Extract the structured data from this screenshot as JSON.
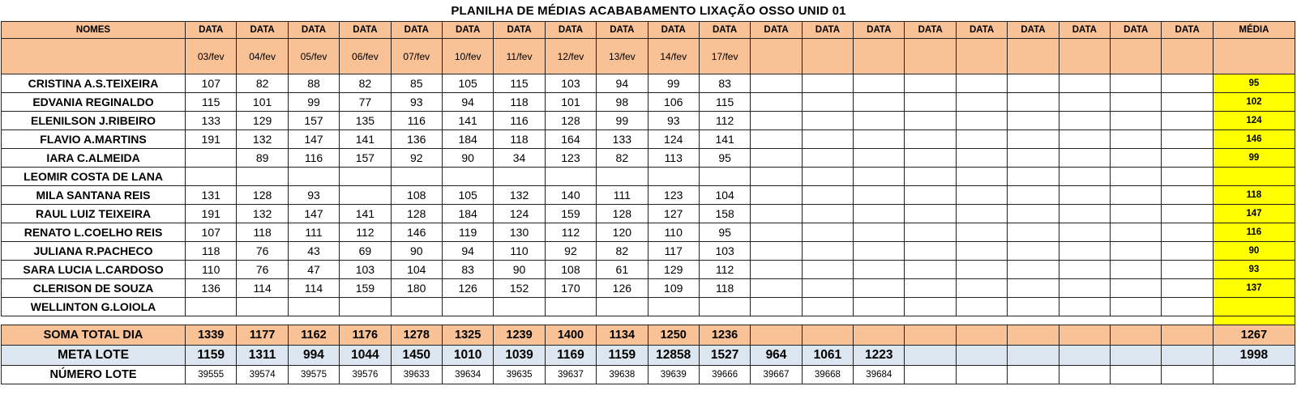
{
  "title": "PLANILHA DE MÉDIAS ACABABAMENTO LIXAÇÃO OSSO UNID 01",
  "headers": {
    "names": "NOMES",
    "date_cols": [
      "DATA",
      "DATA",
      "DATA",
      "DATA",
      "DATA",
      "DATA",
      "DATA",
      "DATA",
      "DATA",
      "DATA",
      "DATA",
      "DATA",
      "DATA",
      "DATA",
      "DATA",
      "DATA",
      "DATA",
      "DATA",
      "DATA",
      "DATA"
    ],
    "media": "MÉDIA"
  },
  "dates": [
    "03/fev",
    "04/fev",
    "05/fev",
    "06/fev",
    "07/fev",
    "10/fev",
    "11/fev",
    "12/fev",
    "13/fev",
    "14/fev",
    "17/fev",
    "",
    "",
    "",
    "",
    "",
    "",
    "",
    "",
    ""
  ],
  "rows": [
    {
      "name": "CRISTINA A.S.TEIXEIRA",
      "values": [
        "107",
        "82",
        "88",
        "82",
        "85",
        "105",
        "115",
        "103",
        "94",
        "99",
        "83",
        "",
        "",
        "",
        "",
        "",
        "",
        "",
        "",
        ""
      ],
      "media": "95"
    },
    {
      "name": "EDVANIA REGINALDO",
      "values": [
        "115",
        "101",
        "99",
        "77",
        "93",
        "94",
        "118",
        "101",
        "98",
        "106",
        "115",
        "",
        "",
        "",
        "",
        "",
        "",
        "",
        "",
        ""
      ],
      "media": "102"
    },
    {
      "name": "ELENILSON J.RIBEIRO",
      "values": [
        "133",
        "129",
        "157",
        "135",
        "116",
        "141",
        "116",
        "128",
        "99",
        "93",
        "112",
        "",
        "",
        "",
        "",
        "",
        "",
        "",
        "",
        ""
      ],
      "media": "124"
    },
    {
      "name": "FLAVIO A.MARTINS",
      "values": [
        "191",
        "132",
        "147",
        "141",
        "136",
        "184",
        "118",
        "164",
        "133",
        "124",
        "141",
        "",
        "",
        "",
        "",
        "",
        "",
        "",
        "",
        ""
      ],
      "media": "146"
    },
    {
      "name": "IARA C.ALMEIDA",
      "values": [
        "",
        "89",
        "116",
        "157",
        "92",
        "90",
        "34",
        "123",
        "82",
        "113",
        "95",
        "",
        "",
        "",
        "",
        "",
        "",
        "",
        "",
        ""
      ],
      "media": "99"
    },
    {
      "name": "LEOMIR COSTA DE LANA",
      "values": [
        "",
        "",
        "",
        "",
        "",
        "",
        "",
        "",
        "",
        "",
        "",
        "",
        "",
        "",
        "",
        "",
        "",
        "",
        "",
        ""
      ],
      "media": ""
    },
    {
      "name": "MILA SANTANA REIS",
      "values": [
        "131",
        "128",
        "93",
        "",
        "108",
        "105",
        "132",
        "140",
        "111",
        "123",
        "104",
        "",
        "",
        "",
        "",
        "",
        "",
        "",
        "",
        ""
      ],
      "media": "118"
    },
    {
      "name": "RAUL LUIZ TEIXEIRA",
      "values": [
        "191",
        "132",
        "147",
        "141",
        "128",
        "184",
        "124",
        "159",
        "128",
        "127",
        "158",
        "",
        "",
        "",
        "",
        "",
        "",
        "",
        "",
        ""
      ],
      "media": "147"
    },
    {
      "name": "RENATO L.COELHO REIS",
      "values": [
        "107",
        "118",
        "111",
        "112",
        "146",
        "119",
        "130",
        "112",
        "120",
        "110",
        "95",
        "",
        "",
        "",
        "",
        "",
        "",
        "",
        "",
        ""
      ],
      "media": "116"
    },
    {
      "name": "JULIANA R.PACHECO",
      "values": [
        "118",
        "76",
        "43",
        "69",
        "90",
        "94",
        "110",
        "92",
        "82",
        "117",
        "103",
        "",
        "",
        "",
        "",
        "",
        "",
        "",
        "",
        ""
      ],
      "media": "90"
    },
    {
      "name": "SARA LUCIA L.CARDOSO",
      "values": [
        "110",
        "76",
        "47",
        "103",
        "104",
        "83",
        "90",
        "108",
        "61",
        "129",
        "112",
        "",
        "",
        "",
        "",
        "",
        "",
        "",
        "",
        ""
      ],
      "media": "93"
    },
    {
      "name": "CLERISON DE SOUZA",
      "values": [
        "136",
        "114",
        "114",
        "159",
        "180",
        "126",
        "152",
        "170",
        "126",
        "109",
        "118",
        "",
        "",
        "",
        "",
        "",
        "",
        "",
        "",
        ""
      ],
      "media": "137"
    },
    {
      "name": "WELLINTON G.LOIOLA",
      "values": [
        "",
        "",
        "",
        "",
        "",
        "",
        "",
        "",
        "",
        "",
        "",
        "",
        "",
        "",
        "",
        "",
        "",
        "",
        "",
        ""
      ],
      "media": ""
    }
  ],
  "soma": {
    "label": "SOMA TOTAL DIA",
    "values": [
      "1339",
      "1177",
      "1162",
      "1176",
      "1278",
      "1325",
      "1239",
      "1400",
      "1134",
      "1250",
      "1236",
      "",
      "",
      "",
      "",
      "",
      "",
      "",
      "",
      ""
    ],
    "media": "1267"
  },
  "meta": {
    "label": "META LOTE",
    "values": [
      "1159",
      "1311",
      "994",
      "1044",
      "1450",
      "1010",
      "1039",
      "1169",
      "1159",
      "12858",
      "1527",
      "964",
      "1061",
      "1223",
      "",
      "",
      "",
      "",
      "",
      ""
    ],
    "media": "1998"
  },
  "numero": {
    "label": "NÚMERO LOTE",
    "values": [
      "39555",
      "39574",
      "39575",
      "39576",
      "39633",
      "39634",
      "39635",
      "39637",
      "39638",
      "39639",
      "39666",
      "39667",
      "39668",
      "39684",
      "",
      "",
      "",
      "",
      "",
      ""
    ],
    "media": ""
  },
  "colors": {
    "header_bg": "#f9c196",
    "media_bg": "#ffff00",
    "meta_bg": "#dce6f1"
  }
}
